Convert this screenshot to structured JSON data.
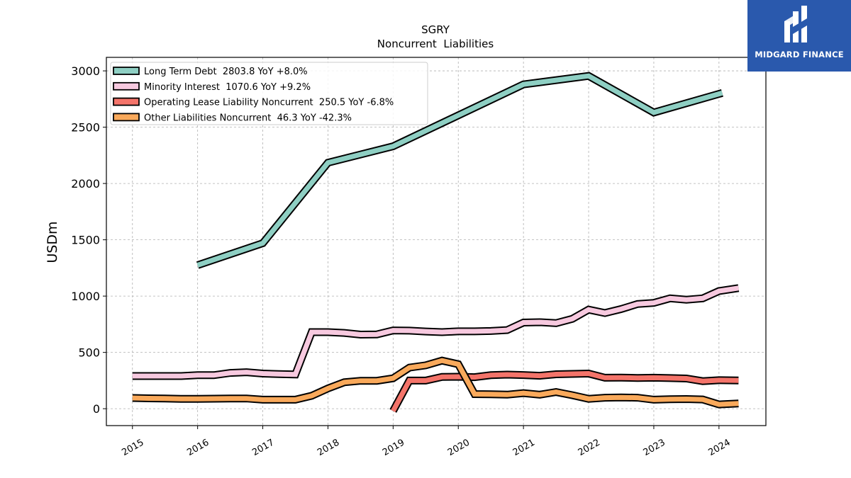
{
  "brand": {
    "name": "MIDGARD FINANCE",
    "color": "#2a59ad"
  },
  "chart_data": {
    "type": "line",
    "title": "SGRY",
    "subtitle": "Noncurrent  Liabilities",
    "xlabel": "",
    "ylabel": "USDm",
    "ylim": [
      -150,
      3120
    ],
    "xlim": [
      2014.6,
      2024.72
    ],
    "yticks": [
      0,
      500,
      1000,
      1500,
      2000,
      2500,
      3000
    ],
    "xticks": [
      "2015",
      "2016",
      "2017",
      "2018",
      "2019",
      "2020",
      "2021",
      "2022",
      "2023",
      "2024"
    ],
    "grid": true,
    "legend_position": "top-left",
    "series": [
      {
        "name": "Long Term Debt",
        "legend_label": "Long Term Debt  2803.8 YoY +8.0%",
        "color": "#8ecfc3",
        "points": [
          [
            2016.0,
            1275
          ],
          [
            2017.0,
            1470
          ],
          [
            2018.0,
            2185
          ],
          [
            2019.0,
            2330
          ],
          [
            2021.0,
            2880
          ],
          [
            2022.0,
            2955
          ],
          [
            2023.0,
            2630
          ],
          [
            2024.05,
            2804
          ]
        ]
      },
      {
        "name": "Minority Interest",
        "legend_label": "Minority Interest  1070.6 YoY +9.2%",
        "color": "#f7c9df",
        "points": [
          [
            2015.0,
            290
          ],
          [
            2015.25,
            290
          ],
          [
            2015.5,
            290
          ],
          [
            2015.75,
            290
          ],
          [
            2016.0,
            298
          ],
          [
            2016.25,
            298
          ],
          [
            2016.5,
            318
          ],
          [
            2016.75,
            324
          ],
          [
            2017.0,
            312
          ],
          [
            2017.25,
            307
          ],
          [
            2017.5,
            304
          ],
          [
            2017.75,
            680
          ],
          [
            2018.0,
            680
          ],
          [
            2018.25,
            673
          ],
          [
            2018.5,
            658
          ],
          [
            2018.75,
            660
          ],
          [
            2019.0,
            695
          ],
          [
            2019.25,
            693
          ],
          [
            2019.5,
            686
          ],
          [
            2019.75,
            680
          ],
          [
            2020.0,
            687
          ],
          [
            2020.25,
            687
          ],
          [
            2020.5,
            690
          ],
          [
            2020.75,
            698
          ],
          [
            2021.0,
            765
          ],
          [
            2021.25,
            768
          ],
          [
            2021.5,
            760
          ],
          [
            2021.75,
            798
          ],
          [
            2022.0,
            880
          ],
          [
            2022.25,
            850
          ],
          [
            2022.5,
            885
          ],
          [
            2022.75,
            930
          ],
          [
            2023.0,
            940
          ],
          [
            2023.25,
            980
          ],
          [
            2023.5,
            968
          ],
          [
            2023.75,
            980
          ],
          [
            2024.0,
            1045
          ],
          [
            2024.3,
            1071
          ]
        ]
      },
      {
        "name": "Operating Lease Liability Noncurrent",
        "legend_label": "Operating Lease Liability Noncurrent  250.5 YoY -6.8%",
        "color": "#f4746a",
        "points": [
          [
            2019.0,
            -20
          ],
          [
            2019.25,
            250
          ],
          [
            2019.5,
            250
          ],
          [
            2019.75,
            282
          ],
          [
            2020.0,
            284
          ],
          [
            2020.25,
            280
          ],
          [
            2020.5,
            298
          ],
          [
            2020.75,
            303
          ],
          [
            2021.0,
            299
          ],
          [
            2021.25,
            293
          ],
          [
            2021.5,
            306
          ],
          [
            2021.75,
            309
          ],
          [
            2022.0,
            312
          ],
          [
            2022.25,
            275
          ],
          [
            2022.5,
            276
          ],
          [
            2022.75,
            273
          ],
          [
            2023.0,
            275
          ],
          [
            2023.25,
            272
          ],
          [
            2023.5,
            268
          ],
          [
            2023.75,
            245
          ],
          [
            2024.0,
            253
          ],
          [
            2024.3,
            251
          ]
        ]
      },
      {
        "name": "Other Liabilities Noncurrent",
        "legend_label": "Other Liabilities Noncurrent  46.3 YoY -42.3%",
        "color": "#f9a95b",
        "points": [
          [
            2015.0,
            95
          ],
          [
            2015.25,
            92
          ],
          [
            2015.5,
            90
          ],
          [
            2015.75,
            87
          ],
          [
            2016.0,
            88
          ],
          [
            2016.25,
            89
          ],
          [
            2016.5,
            90
          ],
          [
            2016.75,
            91
          ],
          [
            2017.0,
            80
          ],
          [
            2017.25,
            80
          ],
          [
            2017.5,
            80
          ],
          [
            2017.75,
            115
          ],
          [
            2018.0,
            180
          ],
          [
            2018.25,
            235
          ],
          [
            2018.5,
            248
          ],
          [
            2018.75,
            248
          ],
          [
            2019.0,
            270
          ],
          [
            2019.25,
            365
          ],
          [
            2019.5,
            385
          ],
          [
            2019.75,
            427
          ],
          [
            2020.0,
            395
          ],
          [
            2020.25,
            130
          ],
          [
            2020.5,
            128
          ],
          [
            2020.75,
            125
          ],
          [
            2021.0,
            138
          ],
          [
            2021.25,
            125
          ],
          [
            2021.5,
            148
          ],
          [
            2021.75,
            120
          ],
          [
            2022.0,
            88
          ],
          [
            2022.25,
            98
          ],
          [
            2022.5,
            100
          ],
          [
            2022.75,
            98
          ],
          [
            2023.0,
            80
          ],
          [
            2023.25,
            84
          ],
          [
            2023.5,
            86
          ],
          [
            2023.75,
            82
          ],
          [
            2024.0,
            38
          ],
          [
            2024.3,
            46
          ]
        ]
      }
    ]
  }
}
